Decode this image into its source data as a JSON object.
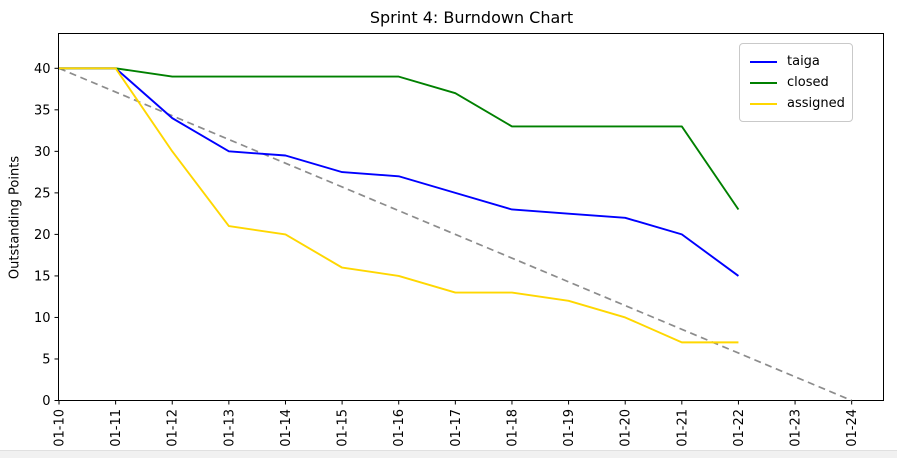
{
  "chart_data": {
    "type": "line",
    "title": "Sprint 4: Burndown Chart",
    "xlabel": "",
    "ylabel": "Outstanding Points",
    "x_tick_labels": [
      "01-10",
      "01-11",
      "01-12",
      "01-13",
      "01-14",
      "01-15",
      "01-16",
      "01-17",
      "01-18",
      "01-19",
      "01-20",
      "01-21",
      "01-22",
      "01-23",
      "01-24"
    ],
    "y_ticks": [
      0,
      5,
      10,
      15,
      20,
      25,
      30,
      35,
      40
    ],
    "ylim": [
      0,
      44.2
    ],
    "grid": false,
    "legend_position": "upper right",
    "axis_color": "#000000",
    "series": [
      {
        "name": "taiga",
        "color": "#0000ff",
        "line_style": "solid",
        "values": [
          40,
          40,
          34,
          30,
          29.5,
          27.5,
          27,
          25,
          23,
          22.5,
          22,
          20,
          15
        ]
      },
      {
        "name": "closed",
        "color": "#008000",
        "line_style": "solid",
        "values": [
          40,
          40,
          39,
          39,
          39,
          39,
          39,
          37,
          33,
          33,
          33,
          33,
          23
        ]
      },
      {
        "name": "assigned",
        "color": "#ffd700",
        "line_style": "solid",
        "values": [
          40,
          40,
          30,
          21,
          20,
          16,
          15,
          13,
          13,
          12,
          10,
          7,
          7
        ]
      }
    ],
    "guide_line": {
      "name": "ideal-burndown",
      "color": "#8c8c8c",
      "line_style": "dashed",
      "in_legend": false,
      "points": [
        [
          "01-10",
          40
        ],
        [
          "01-24",
          0
        ]
      ]
    }
  }
}
